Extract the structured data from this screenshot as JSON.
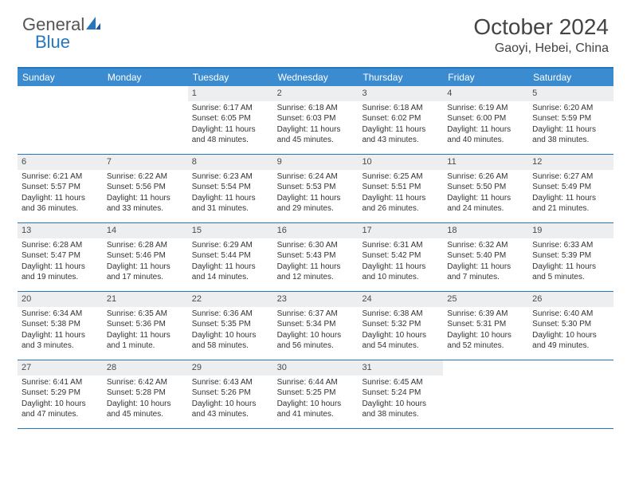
{
  "brand": {
    "part1": "General",
    "part2": "Blue"
  },
  "title": "October 2024",
  "location": "Gaoyi, Hebei, China",
  "colors": {
    "header_rule": "#2676bd",
    "weekday_bg": "#3b8bd0",
    "weekday_fg": "#ffffff",
    "daynum_bg": "#eceef0",
    "text": "#333333",
    "brand_blue": "#2676bd",
    "brand_gray": "#555555"
  },
  "weekdays": [
    "Sunday",
    "Monday",
    "Tuesday",
    "Wednesday",
    "Thursday",
    "Friday",
    "Saturday"
  ],
  "weeks": [
    [
      null,
      null,
      {
        "n": "1",
        "sr": "Sunrise: 6:17 AM",
        "ss": "Sunset: 6:05 PM",
        "dl": "Daylight: 11 hours and 48 minutes."
      },
      {
        "n": "2",
        "sr": "Sunrise: 6:18 AM",
        "ss": "Sunset: 6:03 PM",
        "dl": "Daylight: 11 hours and 45 minutes."
      },
      {
        "n": "3",
        "sr": "Sunrise: 6:18 AM",
        "ss": "Sunset: 6:02 PM",
        "dl": "Daylight: 11 hours and 43 minutes."
      },
      {
        "n": "4",
        "sr": "Sunrise: 6:19 AM",
        "ss": "Sunset: 6:00 PM",
        "dl": "Daylight: 11 hours and 40 minutes."
      },
      {
        "n": "5",
        "sr": "Sunrise: 6:20 AM",
        "ss": "Sunset: 5:59 PM",
        "dl": "Daylight: 11 hours and 38 minutes."
      }
    ],
    [
      {
        "n": "6",
        "sr": "Sunrise: 6:21 AM",
        "ss": "Sunset: 5:57 PM",
        "dl": "Daylight: 11 hours and 36 minutes."
      },
      {
        "n": "7",
        "sr": "Sunrise: 6:22 AM",
        "ss": "Sunset: 5:56 PM",
        "dl": "Daylight: 11 hours and 33 minutes."
      },
      {
        "n": "8",
        "sr": "Sunrise: 6:23 AM",
        "ss": "Sunset: 5:54 PM",
        "dl": "Daylight: 11 hours and 31 minutes."
      },
      {
        "n": "9",
        "sr": "Sunrise: 6:24 AM",
        "ss": "Sunset: 5:53 PM",
        "dl": "Daylight: 11 hours and 29 minutes."
      },
      {
        "n": "10",
        "sr": "Sunrise: 6:25 AM",
        "ss": "Sunset: 5:51 PM",
        "dl": "Daylight: 11 hours and 26 minutes."
      },
      {
        "n": "11",
        "sr": "Sunrise: 6:26 AM",
        "ss": "Sunset: 5:50 PM",
        "dl": "Daylight: 11 hours and 24 minutes."
      },
      {
        "n": "12",
        "sr": "Sunrise: 6:27 AM",
        "ss": "Sunset: 5:49 PM",
        "dl": "Daylight: 11 hours and 21 minutes."
      }
    ],
    [
      {
        "n": "13",
        "sr": "Sunrise: 6:28 AM",
        "ss": "Sunset: 5:47 PM",
        "dl": "Daylight: 11 hours and 19 minutes."
      },
      {
        "n": "14",
        "sr": "Sunrise: 6:28 AM",
        "ss": "Sunset: 5:46 PM",
        "dl": "Daylight: 11 hours and 17 minutes."
      },
      {
        "n": "15",
        "sr": "Sunrise: 6:29 AM",
        "ss": "Sunset: 5:44 PM",
        "dl": "Daylight: 11 hours and 14 minutes."
      },
      {
        "n": "16",
        "sr": "Sunrise: 6:30 AM",
        "ss": "Sunset: 5:43 PM",
        "dl": "Daylight: 11 hours and 12 minutes."
      },
      {
        "n": "17",
        "sr": "Sunrise: 6:31 AM",
        "ss": "Sunset: 5:42 PM",
        "dl": "Daylight: 11 hours and 10 minutes."
      },
      {
        "n": "18",
        "sr": "Sunrise: 6:32 AM",
        "ss": "Sunset: 5:40 PM",
        "dl": "Daylight: 11 hours and 7 minutes."
      },
      {
        "n": "19",
        "sr": "Sunrise: 6:33 AM",
        "ss": "Sunset: 5:39 PM",
        "dl": "Daylight: 11 hours and 5 minutes."
      }
    ],
    [
      {
        "n": "20",
        "sr": "Sunrise: 6:34 AM",
        "ss": "Sunset: 5:38 PM",
        "dl": "Daylight: 11 hours and 3 minutes."
      },
      {
        "n": "21",
        "sr": "Sunrise: 6:35 AM",
        "ss": "Sunset: 5:36 PM",
        "dl": "Daylight: 11 hours and 1 minute."
      },
      {
        "n": "22",
        "sr": "Sunrise: 6:36 AM",
        "ss": "Sunset: 5:35 PM",
        "dl": "Daylight: 10 hours and 58 minutes."
      },
      {
        "n": "23",
        "sr": "Sunrise: 6:37 AM",
        "ss": "Sunset: 5:34 PM",
        "dl": "Daylight: 10 hours and 56 minutes."
      },
      {
        "n": "24",
        "sr": "Sunrise: 6:38 AM",
        "ss": "Sunset: 5:32 PM",
        "dl": "Daylight: 10 hours and 54 minutes."
      },
      {
        "n": "25",
        "sr": "Sunrise: 6:39 AM",
        "ss": "Sunset: 5:31 PM",
        "dl": "Daylight: 10 hours and 52 minutes."
      },
      {
        "n": "26",
        "sr": "Sunrise: 6:40 AM",
        "ss": "Sunset: 5:30 PM",
        "dl": "Daylight: 10 hours and 49 minutes."
      }
    ],
    [
      {
        "n": "27",
        "sr": "Sunrise: 6:41 AM",
        "ss": "Sunset: 5:29 PM",
        "dl": "Daylight: 10 hours and 47 minutes."
      },
      {
        "n": "28",
        "sr": "Sunrise: 6:42 AM",
        "ss": "Sunset: 5:28 PM",
        "dl": "Daylight: 10 hours and 45 minutes."
      },
      {
        "n": "29",
        "sr": "Sunrise: 6:43 AM",
        "ss": "Sunset: 5:26 PM",
        "dl": "Daylight: 10 hours and 43 minutes."
      },
      {
        "n": "30",
        "sr": "Sunrise: 6:44 AM",
        "ss": "Sunset: 5:25 PM",
        "dl": "Daylight: 10 hours and 41 minutes."
      },
      {
        "n": "31",
        "sr": "Sunrise: 6:45 AM",
        "ss": "Sunset: 5:24 PM",
        "dl": "Daylight: 10 hours and 38 minutes."
      },
      null,
      null
    ]
  ]
}
